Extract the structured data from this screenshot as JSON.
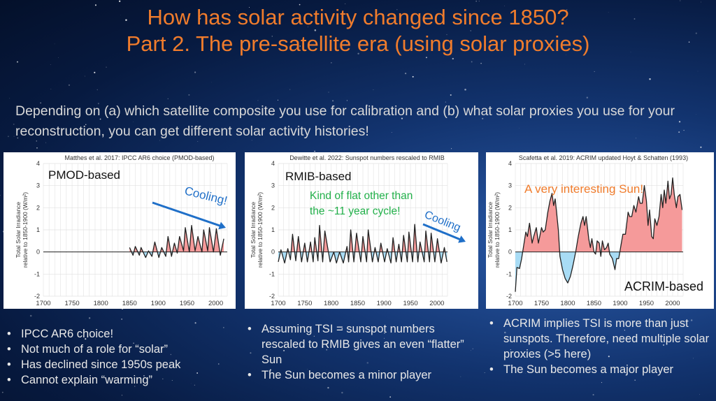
{
  "title": [
    "How has solar activity changed since 1850?",
    "Part 2. The pre-satellite era (using solar proxies)"
  ],
  "subtitle": "Depending on (a) which satellite composite you use for calibration and (b) what solar proxies you use for your reconstruction, you can get different solar activity histories!",
  "colors": {
    "title": "#f07c2c",
    "positive_fill": "#f59a9a",
    "negative_fill": "#a8dcf5",
    "arrow": "#1f6fc8",
    "green_note": "#22b04a",
    "orange_note": "#f07c2c"
  },
  "chart_data": [
    {
      "type": "area",
      "title": "Matthes et al. 2017: IPCC AR6 choice (PMOD-based)",
      "label": "PMOD-based",
      "annotations": [
        {
          "text": "Cooling!",
          "color": "#1f6fc8",
          "arrow": true
        }
      ],
      "ylabel": [
        "Total Solar Irradiance",
        "relative to 1850-1900 (W/m²)"
      ],
      "xlim": [
        1700,
        2020
      ],
      "ylim": [
        -2,
        4
      ],
      "xticks": [
        1700,
        1750,
        1800,
        1850,
        1900,
        1950,
        2000
      ],
      "yticks": [
        -2,
        -1,
        0,
        1,
        2,
        3,
        4
      ],
      "grid": true,
      "x": [
        1850,
        1856,
        1860,
        1867,
        1870,
        1878,
        1883,
        1889,
        1894,
        1901,
        1906,
        1913,
        1917,
        1923,
        1928,
        1933,
        1937,
        1944,
        1947,
        1954,
        1958,
        1964,
        1969,
        1976,
        1979,
        1986,
        1989,
        1996,
        2001,
        2008,
        2014
      ],
      "y": [
        0.2,
        -0.15,
        0.25,
        -0.15,
        0.2,
        -0.25,
        0.05,
        -0.2,
        0.45,
        -0.25,
        0.2,
        -0.2,
        0.7,
        -0.2,
        0.4,
        -0.05,
        0.7,
        0.05,
        1.1,
        0.0,
        1.2,
        0.05,
        0.7,
        0.0,
        1.0,
        0.05,
        1.1,
        0.0,
        1.05,
        -0.15,
        0.6
      ]
    },
    {
      "type": "area",
      "title": "Dewitte et al. 2022: Sunspot numbers rescaled to RMIB",
      "label": "RMIB-based",
      "annotations": [
        {
          "text": "Kind of flat other than",
          "color": "#22b04a"
        },
        {
          "text": "the  ~11 year cycle!",
          "color": "#22b04a"
        },
        {
          "text": "Cooling",
          "color": "#1f6fc8",
          "arrow": true
        }
      ],
      "ylabel": [
        "Total Solar Irradiance",
        "relative to 1850-1900 (W/m²)"
      ],
      "xlim": [
        1700,
        2020
      ],
      "ylim": [
        -2,
        4
      ],
      "xticks": [
        1700,
        1750,
        1800,
        1850,
        1900,
        1950,
        2000
      ],
      "yticks": [
        -2,
        -1,
        0,
        1,
        2,
        3,
        4
      ],
      "grid": true,
      "x": [
        1700,
        1705,
        1712,
        1718,
        1723,
        1727,
        1733,
        1738,
        1744,
        1750,
        1755,
        1761,
        1766,
        1769,
        1775,
        1778,
        1784,
        1788,
        1798,
        1805,
        1810,
        1816,
        1823,
        1830,
        1833,
        1837,
        1843,
        1848,
        1856,
        1860,
        1867,
        1870,
        1878,
        1883,
        1889,
        1894,
        1901,
        1906,
        1913,
        1917,
        1923,
        1928,
        1933,
        1937,
        1944,
        1947,
        1954,
        1958,
        1964,
        1968,
        1976,
        1979,
        1986,
        1989,
        1996,
        2001,
        2008,
        2014,
        2019
      ],
      "y": [
        -0.45,
        0.1,
        -0.5,
        0.15,
        -0.35,
        0.8,
        -0.4,
        0.7,
        -0.45,
        0.4,
        -0.45,
        0.45,
        -0.45,
        0.65,
        -0.4,
        1.2,
        -0.45,
        0.95,
        -0.45,
        0.0,
        -0.5,
        0.0,
        -0.5,
        0.25,
        -0.45,
        1.0,
        -0.45,
        0.85,
        -0.45,
        0.7,
        -0.45,
        1.0,
        -0.45,
        0.2,
        -0.45,
        0.4,
        -0.45,
        0.15,
        -0.5,
        0.65,
        -0.45,
        0.35,
        -0.45,
        0.75,
        -0.45,
        0.9,
        -0.45,
        1.25,
        -0.45,
        0.45,
        -0.45,
        0.95,
        -0.45,
        0.85,
        -0.45,
        0.6,
        -0.5,
        0.2,
        -0.45
      ]
    },
    {
      "type": "area",
      "title": "Scafetta et al. 2019: ACRIM updated Hoyt & Schatten (1993)",
      "label": "ACRIM-based",
      "annotations": [
        {
          "text": "A very interesting Sun!",
          "color": "#f07c2c"
        }
      ],
      "ylabel": [
        "Total Solar Irradiance",
        "relative to 1850-1900 (W/m²)"
      ],
      "xlim": [
        1700,
        2020
      ],
      "ylim": [
        -2,
        4
      ],
      "xticks": [
        1700,
        1750,
        1800,
        1850,
        1900,
        1950,
        2000
      ],
      "yticks": [
        -2,
        -1,
        0,
        1,
        2,
        3,
        4
      ],
      "grid": true,
      "x": [
        1700,
        1703,
        1708,
        1712,
        1716,
        1720,
        1723,
        1727,
        1732,
        1735,
        1740,
        1744,
        1750,
        1753,
        1757,
        1762,
        1766,
        1770,
        1773,
        1776,
        1779,
        1782,
        1785,
        1790,
        1795,
        1800,
        1805,
        1810,
        1815,
        1820,
        1825,
        1829,
        1832,
        1835,
        1840,
        1843,
        1846,
        1850,
        1853,
        1856,
        1860,
        1863,
        1866,
        1870,
        1874,
        1877,
        1880,
        1885,
        1890,
        1893,
        1897,
        1900,
        1905,
        1910,
        1915,
        1918,
        1922,
        1926,
        1930,
        1935,
        1938,
        1942,
        1946,
        1950,
        1953,
        1956,
        1960,
        1963,
        1966,
        1970,
        1974,
        1978,
        1981,
        1984,
        1987,
        1991,
        1994,
        1997,
        2000,
        2003,
        2007,
        2010,
        2014,
        2018
      ],
      "y": [
        -1.8,
        -0.7,
        -0.75,
        -0.3,
        0.3,
        0.9,
        0.7,
        1.3,
        0.4,
        0.7,
        1.1,
        0.4,
        1.1,
        0.9,
        1.0,
        1.8,
        2.3,
        2.65,
        2.1,
        2.4,
        1.7,
        1.0,
        -0.2,
        -0.8,
        -1.2,
        -1.4,
        -1.1,
        -0.6,
        0.0,
        0.7,
        1.3,
        1.6,
        1.2,
        1.6,
        0.6,
        0.2,
        0.6,
        0.0,
        -0.1,
        0.5,
        0.4,
        -0.2,
        0.5,
        0.1,
        0.2,
        0.4,
        -0.1,
        -0.3,
        -0.8,
        -0.3,
        -0.3,
        0.1,
        0.8,
        0.8,
        1.8,
        1.6,
        1.6,
        2.1,
        1.8,
        2.5,
        2.2,
        2.2,
        3.0,
        2.3,
        1.2,
        1.9,
        0.7,
        0.6,
        1.5,
        1.2,
        1.6,
        2.6,
        2.0,
        2.8,
        2.2,
        3.2,
        2.4,
        2.6,
        3.35,
        2.6,
        2.0,
        2.5,
        2.6,
        1.9
      ]
    }
  ],
  "bullets": [
    [
      "IPCC AR6 choice!",
      "Not much of a role for “solar”",
      "Has declined since 1950s peak",
      "Cannot explain “warming”"
    ],
    [
      "Assuming TSI = sunspot numbers rescaled to RMIB gives an even “flatter” Sun",
      "The Sun becomes a minor player"
    ],
    [
      "ACRIM implies TSI is more than just sunspots. Therefore, need multiple solar proxies (>5 here)",
      "The Sun becomes a major player"
    ]
  ]
}
